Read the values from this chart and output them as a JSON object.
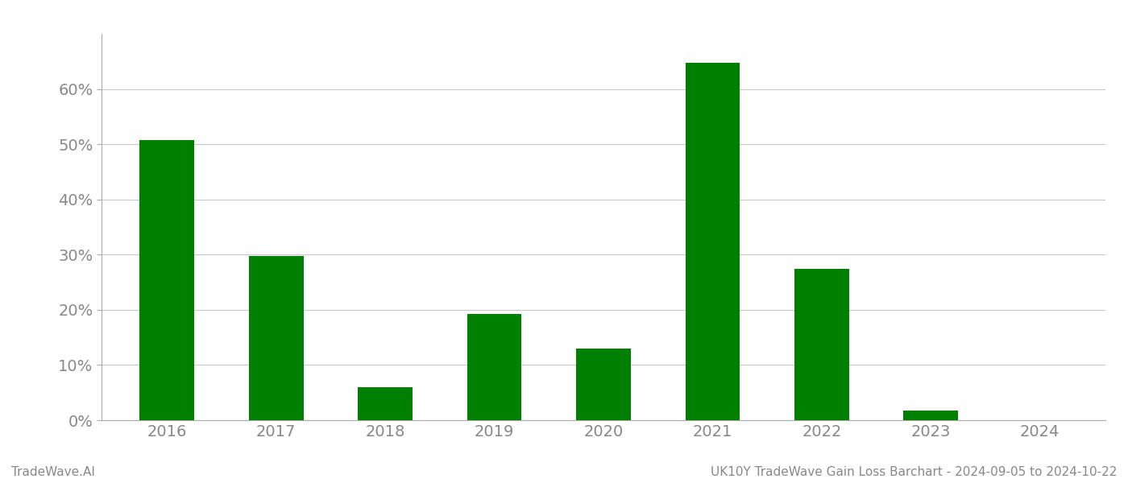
{
  "years": [
    "2016",
    "2017",
    "2018",
    "2019",
    "2020",
    "2021",
    "2022",
    "2023",
    "2024"
  ],
  "values": [
    0.507,
    0.298,
    0.06,
    0.192,
    0.13,
    0.648,
    0.274,
    0.018,
    0.0
  ],
  "bar_color": "#008000",
  "background_color": "#ffffff",
  "grid_color": "#c8c8c8",
  "label_color": "#888888",
  "ylim": [
    0,
    0.7
  ],
  "yticks": [
    0.0,
    0.1,
    0.2,
    0.3,
    0.4,
    0.5,
    0.6
  ],
  "footer_left": "TradeWave.AI",
  "footer_right": "UK10Y TradeWave Gain Loss Barchart - 2024-09-05 to 2024-10-22",
  "footer_fontsize": 11,
  "tick_fontsize": 14,
  "bar_width": 0.5
}
